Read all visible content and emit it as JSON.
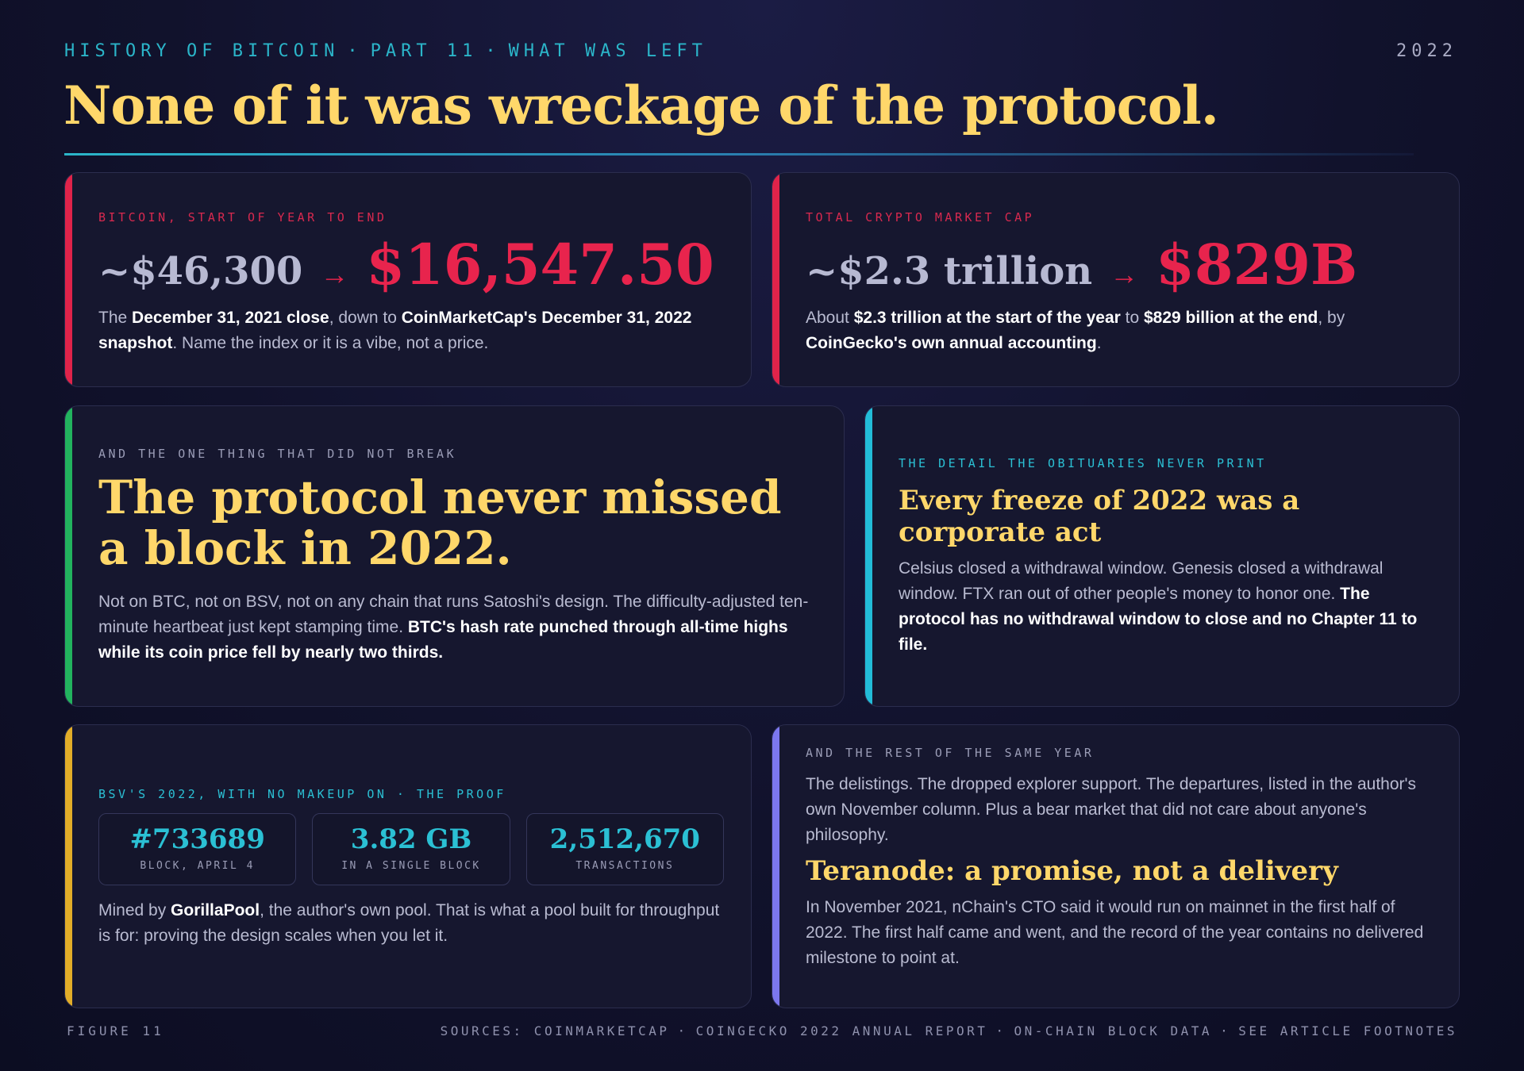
{
  "header": {
    "kicker_parts": [
      "HISTORY OF BITCOIN",
      "PART 11",
      "WHAT WAS LEFT"
    ],
    "kicker_separator": "·",
    "year": "2022",
    "headline": "None of it was wreckage of the protocol."
  },
  "cards": {
    "bitcoin": {
      "label": "BITCOIN, START OF YEAR TO END",
      "old_value": "~$46,300",
      "arrow": "→",
      "new_value": "$16,547.50",
      "text": [
        {
          "t": "The ",
          "b": false
        },
        {
          "t": "December 31, 2021 close",
          "b": true
        },
        {
          "t": ", down to ",
          "b": false
        },
        {
          "t": "CoinMarketCap's December 31, 2022 snapshot",
          "b": true
        },
        {
          "t": ". Name the index or it is a vibe, not a price.",
          "b": false
        }
      ]
    },
    "market": {
      "label": "TOTAL CRYPTO MARKET CAP",
      "old_value": "~$2.3 trillion",
      "arrow": "→",
      "new_value": "$829B",
      "text": [
        {
          "t": "About ",
          "b": false
        },
        {
          "t": "$2.3 trillion at the start of the year",
          "b": true
        },
        {
          "t": " to ",
          "b": false
        },
        {
          "t": "$829 billion at the end",
          "b": true
        },
        {
          "t": ", by ",
          "b": false
        },
        {
          "t": "CoinGecko's own annual accounting",
          "b": true
        },
        {
          "t": ".",
          "b": false
        }
      ]
    },
    "protocol": {
      "label": "AND THE ONE THING THAT DID NOT BREAK",
      "heading": "The protocol never missed a block in 2022.",
      "text": [
        {
          "t": "Not on BTC, not on BSV, not on any chain that runs Satoshi's design. The difficulty-adjusted ten-minute heartbeat just kept stamping time. ",
          "b": false
        },
        {
          "t": "BTC's hash rate punched through all-time highs while its coin price fell by nearly two thirds.",
          "b": true
        }
      ]
    },
    "freeze": {
      "label": "THE DETAIL THE OBITUARIES NEVER PRINT",
      "heading": "Every freeze of 2022 was a corporate act",
      "text": [
        {
          "t": "Celsius closed a withdrawal window. Genesis closed a withdrawal window. FTX ran out of other people's money to honor one. ",
          "b": false
        },
        {
          "t": "The protocol has no withdrawal window to close and no Chapter 11 to file.",
          "b": true
        }
      ]
    },
    "bsv": {
      "label": "BSV'S 2022, WITH NO MAKEUP ON · THE PROOF",
      "proofs": [
        {
          "value": "#733689",
          "caption": "BLOCK, APRIL 4"
        },
        {
          "value": "3.82 GB",
          "caption": "IN A SINGLE BLOCK"
        },
        {
          "value": "2,512,670",
          "caption": "TRANSACTIONS"
        }
      ],
      "text": [
        {
          "t": "Mined by ",
          "b": false
        },
        {
          "t": "GorillaPool",
          "b": true
        },
        {
          "t": ", the author's own pool. That is what a pool built for throughput is for: proving the design scales when you let it.",
          "b": false
        }
      ]
    },
    "rest": {
      "label": "AND THE REST OF THE SAME YEAR",
      "text1": "The delistings. The dropped explorer support. The departures, listed in the author's own November column. Plus a bear market that did not care about anyone's philosophy.",
      "heading": "Teranode: a promise, not a delivery",
      "text2": "In November 2021, nChain's CTO said it would run on mainnet in the first half of 2022. The first half came and went, and the record of the year contains no delivered milestone to point at."
    }
  },
  "footer": {
    "figure": "FIGURE 11",
    "sources": [
      "SOURCES: COINMARKETCAP",
      "COINGECKO 2022 ANNUAL REPORT",
      "ON-CHAIN BLOCK DATA",
      "SEE ARTICLE FOOTNOTES"
    ],
    "separator": "·"
  },
  "colors": {
    "headline": "#ffd76a",
    "red_accent": "#e0234a",
    "green_accent": "#22b35e",
    "cyan_accent": "#22bcd8",
    "gold_accent": "#e2ad28",
    "violet_accent": "#7c77ee"
  }
}
